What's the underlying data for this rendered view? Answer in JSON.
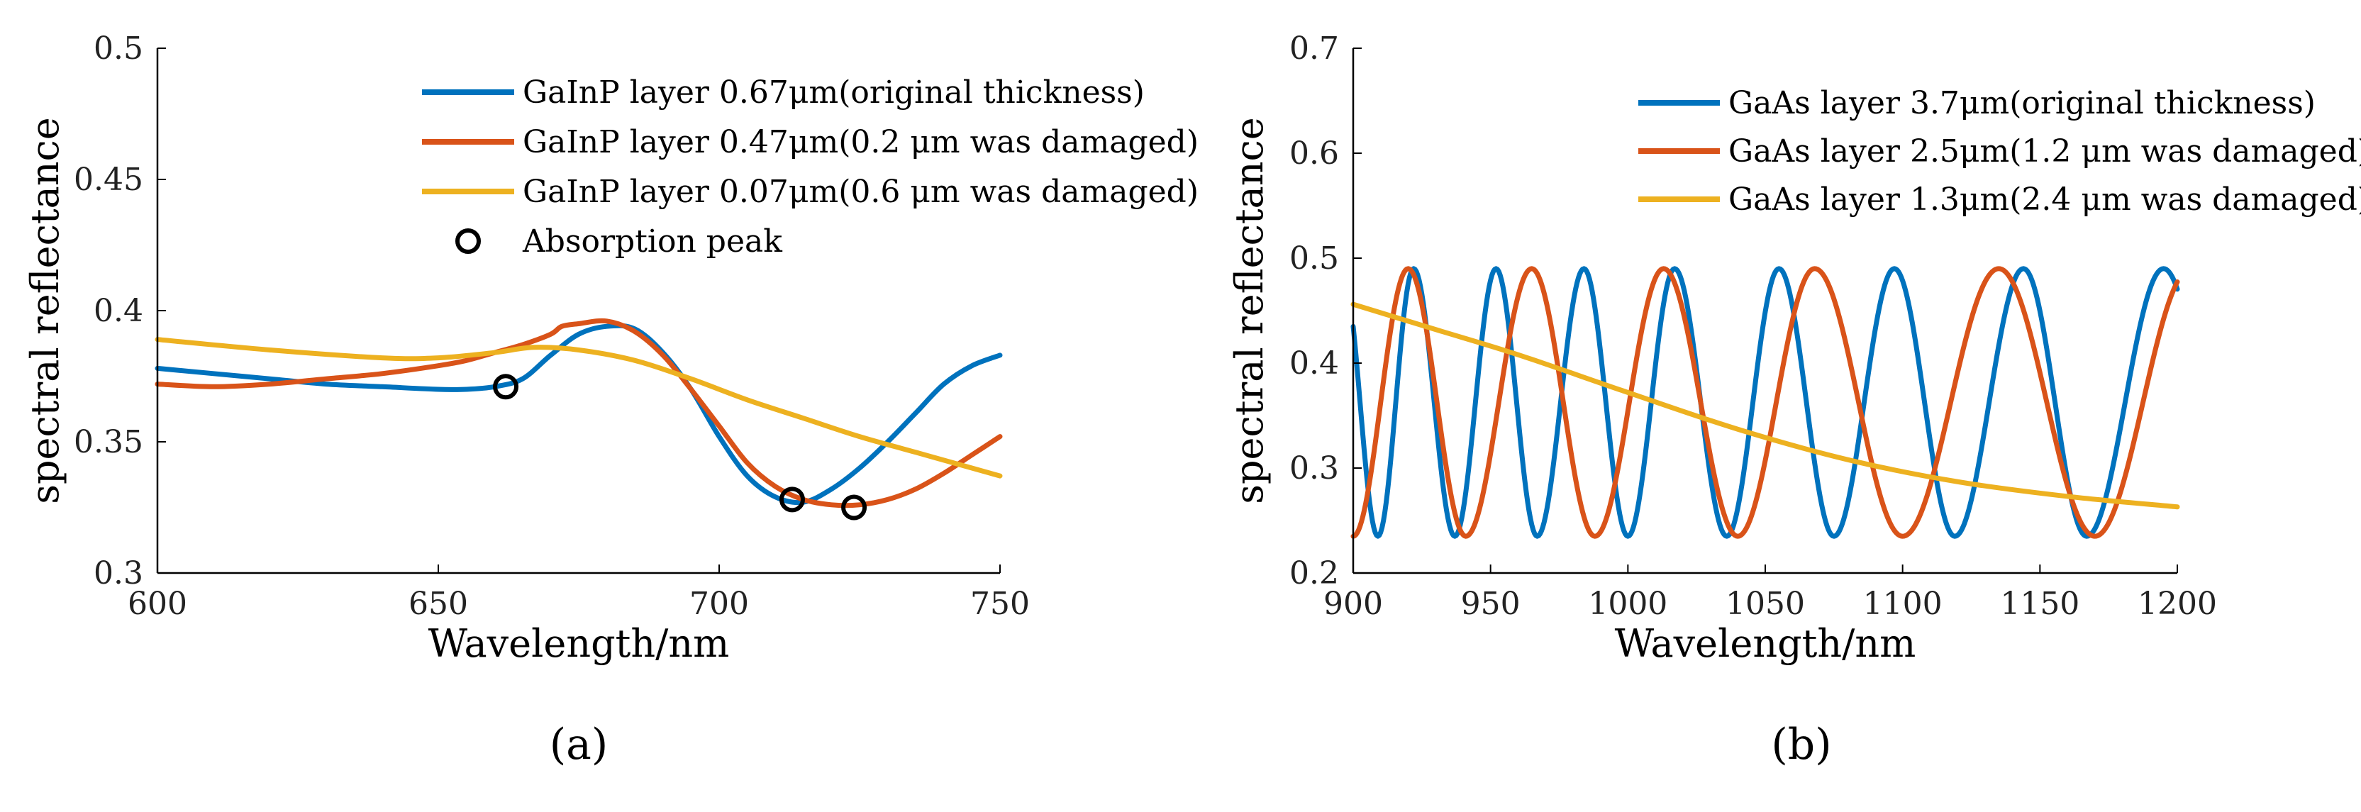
{
  "chart_data": [
    {
      "type": "line",
      "panel_label": "(a)",
      "xlabel": "Wavelength/nm",
      "ylabel": "spectral reflectance",
      "xlim": [
        600,
        750
      ],
      "ylim": [
        0.3,
        0.5
      ],
      "xticks": [
        "600",
        "650",
        "700",
        "750"
      ],
      "yticks": [
        "0.3",
        "0.35",
        "0.4",
        "0.45",
        "0.5"
      ],
      "legend_position": "top-right",
      "series": [
        {
          "name": "GaInP layer 0.67μm(original thickness)",
          "color": "#0072BD",
          "x": [
            600,
            610,
            620,
            630,
            640,
            650,
            655,
            660,
            665,
            670,
            675,
            680,
            685,
            690,
            695,
            700,
            705,
            710,
            715,
            720,
            725,
            730,
            735,
            740,
            745,
            750
          ],
          "y": [
            0.378,
            0.376,
            0.374,
            0.372,
            0.371,
            0.37,
            0.37,
            0.371,
            0.374,
            0.383,
            0.391,
            0.394,
            0.393,
            0.384,
            0.37,
            0.352,
            0.337,
            0.329,
            0.327,
            0.332,
            0.34,
            0.35,
            0.361,
            0.372,
            0.379,
            0.383
          ]
        },
        {
          "name": "GaInP layer 0.47μm(0.2 μm was damaged)",
          "color": "#D95319",
          "x": [
            600,
            610,
            620,
            630,
            640,
            650,
            655,
            660,
            665,
            670,
            672,
            675,
            680,
            685,
            690,
            695,
            700,
            705,
            710,
            715,
            720,
            725,
            730,
            735,
            740,
            745,
            750
          ],
          "y": [
            0.372,
            0.371,
            0.372,
            0.374,
            0.376,
            0.379,
            0.381,
            0.384,
            0.387,
            0.391,
            0.394,
            0.395,
            0.396,
            0.392,
            0.383,
            0.37,
            0.356,
            0.342,
            0.333,
            0.328,
            0.326,
            0.326,
            0.328,
            0.332,
            0.338,
            0.345,
            0.352
          ]
        },
        {
          "name": "GaInP layer 0.07μm(0.6 μm was damaged)",
          "color": "#EDB120",
          "x": [
            600,
            620,
            640,
            650,
            660,
            667,
            675,
            685,
            695,
            705,
            715,
            725,
            735,
            745,
            750
          ],
          "y": [
            0.389,
            0.385,
            0.382,
            0.382,
            0.384,
            0.386,
            0.385,
            0.381,
            0.374,
            0.366,
            0.359,
            0.352,
            0.346,
            0.34,
            0.337
          ]
        }
      ],
      "markers": {
        "name": "Absorption peak",
        "points": [
          [
            662,
            0.371
          ],
          [
            713,
            0.328
          ],
          [
            724,
            0.325
          ]
        ]
      }
    },
    {
      "type": "line",
      "panel_label": "(b)",
      "xlabel": "Wavelength/nm",
      "ylabel": "spectral reflectance",
      "xlim": [
        900,
        1200
      ],
      "ylim": [
        0.2,
        0.7
      ],
      "xticks": [
        "900",
        "950",
        "1000",
        "1050",
        "1100",
        "1150",
        "1200"
      ],
      "yticks": [
        "0.2",
        "0.3",
        "0.4",
        "0.5",
        "0.6",
        "0.7"
      ],
      "legend_position": "top-right",
      "series": [
        {
          "name": "GaAs layer 3.7μm(original thickness)",
          "color": "#0072BD",
          "maxima": [
            922,
            952,
            984,
            1017,
            1055,
            1097,
            1144,
            1195
          ],
          "minima": [
            909,
            937,
            967,
            1000,
            1036,
            1075,
            1119,
            1167
          ],
          "max_value": 0.49,
          "min_value": 0.235
        },
        {
          "name": "GaAs layer 2.5μm(1.2 μm was damaged)",
          "color": "#D95319",
          "maxima": [
            920,
            965,
            1013,
            1068,
            1135
          ],
          "minima": [
            900,
            941,
            988,
            1040,
            1100,
            1170
          ],
          "max_value": 0.49,
          "min_value": 0.235
        },
        {
          "name": "GaAs layer 1.3μm(2.4 μm was damaged)",
          "color": "#EDB120",
          "x": [
            900,
            930,
            960,
            1000,
            1040,
            1080,
            1120,
            1160,
            1200
          ],
          "y": [
            0.456,
            0.432,
            0.408,
            0.372,
            0.337,
            0.308,
            0.287,
            0.273,
            0.263
          ]
        }
      ]
    }
  ]
}
